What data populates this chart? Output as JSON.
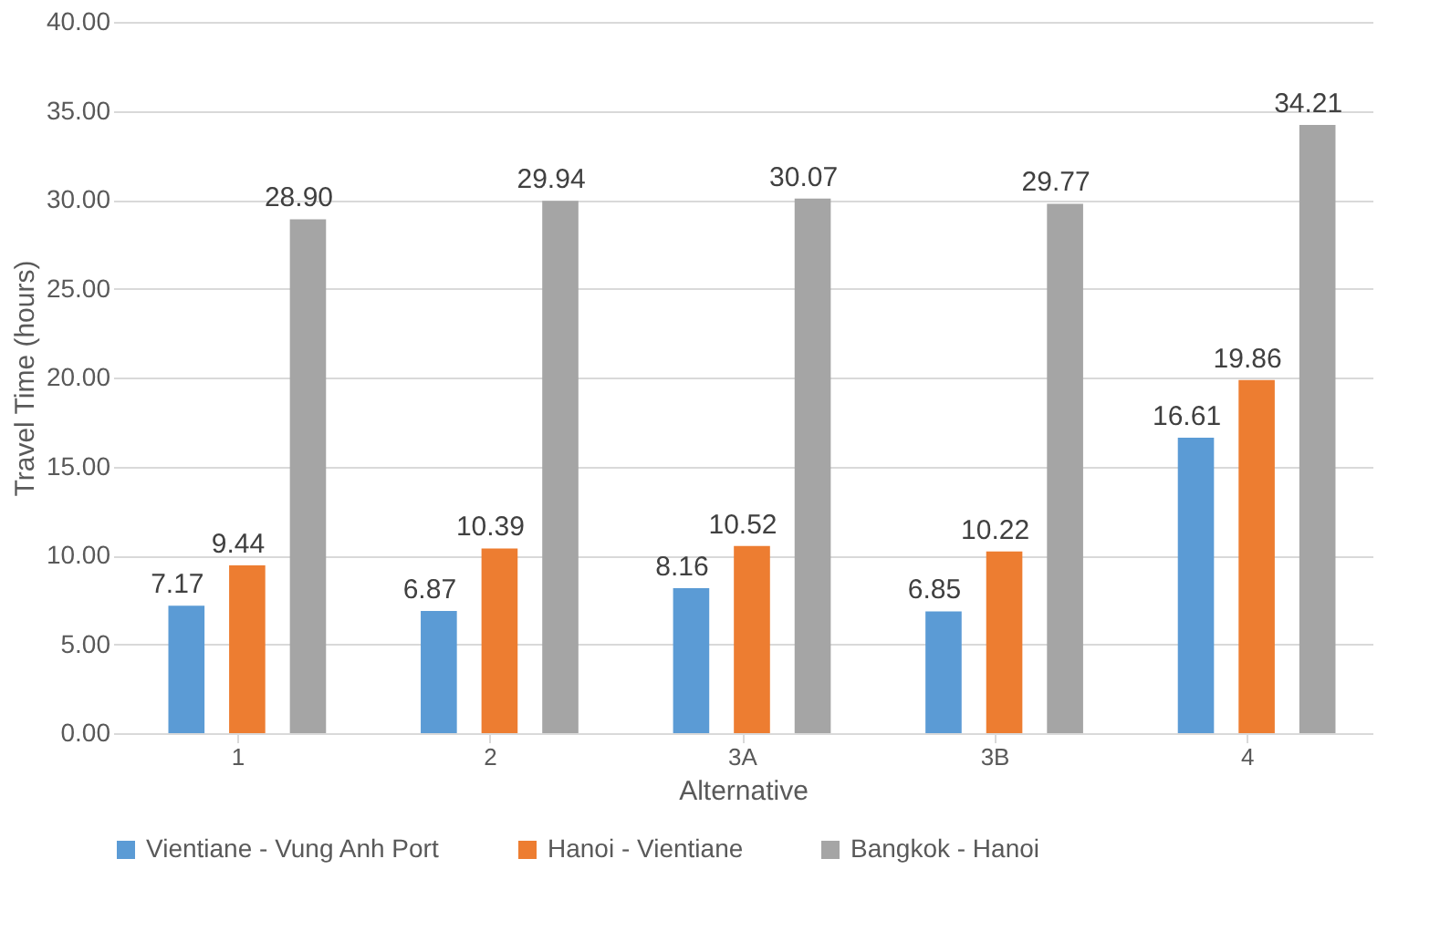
{
  "chart_data": {
    "type": "bar",
    "xlabel": "Alternative",
    "ylabel": "Travel Time (hours)",
    "categories": [
      "1",
      "2",
      "3A",
      "3B",
      "4"
    ],
    "series": [
      {
        "name": "Vientiane - Vung Anh Port",
        "color": "#5b9bd5",
        "values": [
          7.17,
          6.87,
          8.16,
          6.85,
          16.61
        ],
        "value_labels": [
          "7.17",
          "6.87",
          "8.16",
          "6.85",
          "16.61"
        ]
      },
      {
        "name": "Hanoi - Vientiane",
        "color": "#ed7d31",
        "values": [
          9.44,
          10.39,
          10.52,
          10.22,
          19.86
        ],
        "value_labels": [
          "9.44",
          "10.39",
          "10.52",
          "10.22",
          "19.86"
        ]
      },
      {
        "name": "Bangkok - Hanoi",
        "color": "#a5a5a5",
        "values": [
          28.9,
          29.94,
          30.07,
          29.77,
          34.21
        ],
        "value_labels": [
          "28.90",
          "29.94",
          "30.07",
          "29.77",
          "34.21"
        ]
      }
    ],
    "ylim": [
      0,
      40
    ],
    "yticks": [
      {
        "value": 0,
        "label": "0.00"
      },
      {
        "value": 5,
        "label": "5.00"
      },
      {
        "value": 10,
        "label": "10.00"
      },
      {
        "value": 15,
        "label": "15.00"
      },
      {
        "value": 20,
        "label": "20.00"
      },
      {
        "value": 25,
        "label": "25.00"
      },
      {
        "value": 30,
        "label": "30.00"
      },
      {
        "value": 35,
        "label": "35.00"
      },
      {
        "value": 40,
        "label": "40.00"
      }
    ],
    "grid": "y",
    "legend": "bottom"
  }
}
